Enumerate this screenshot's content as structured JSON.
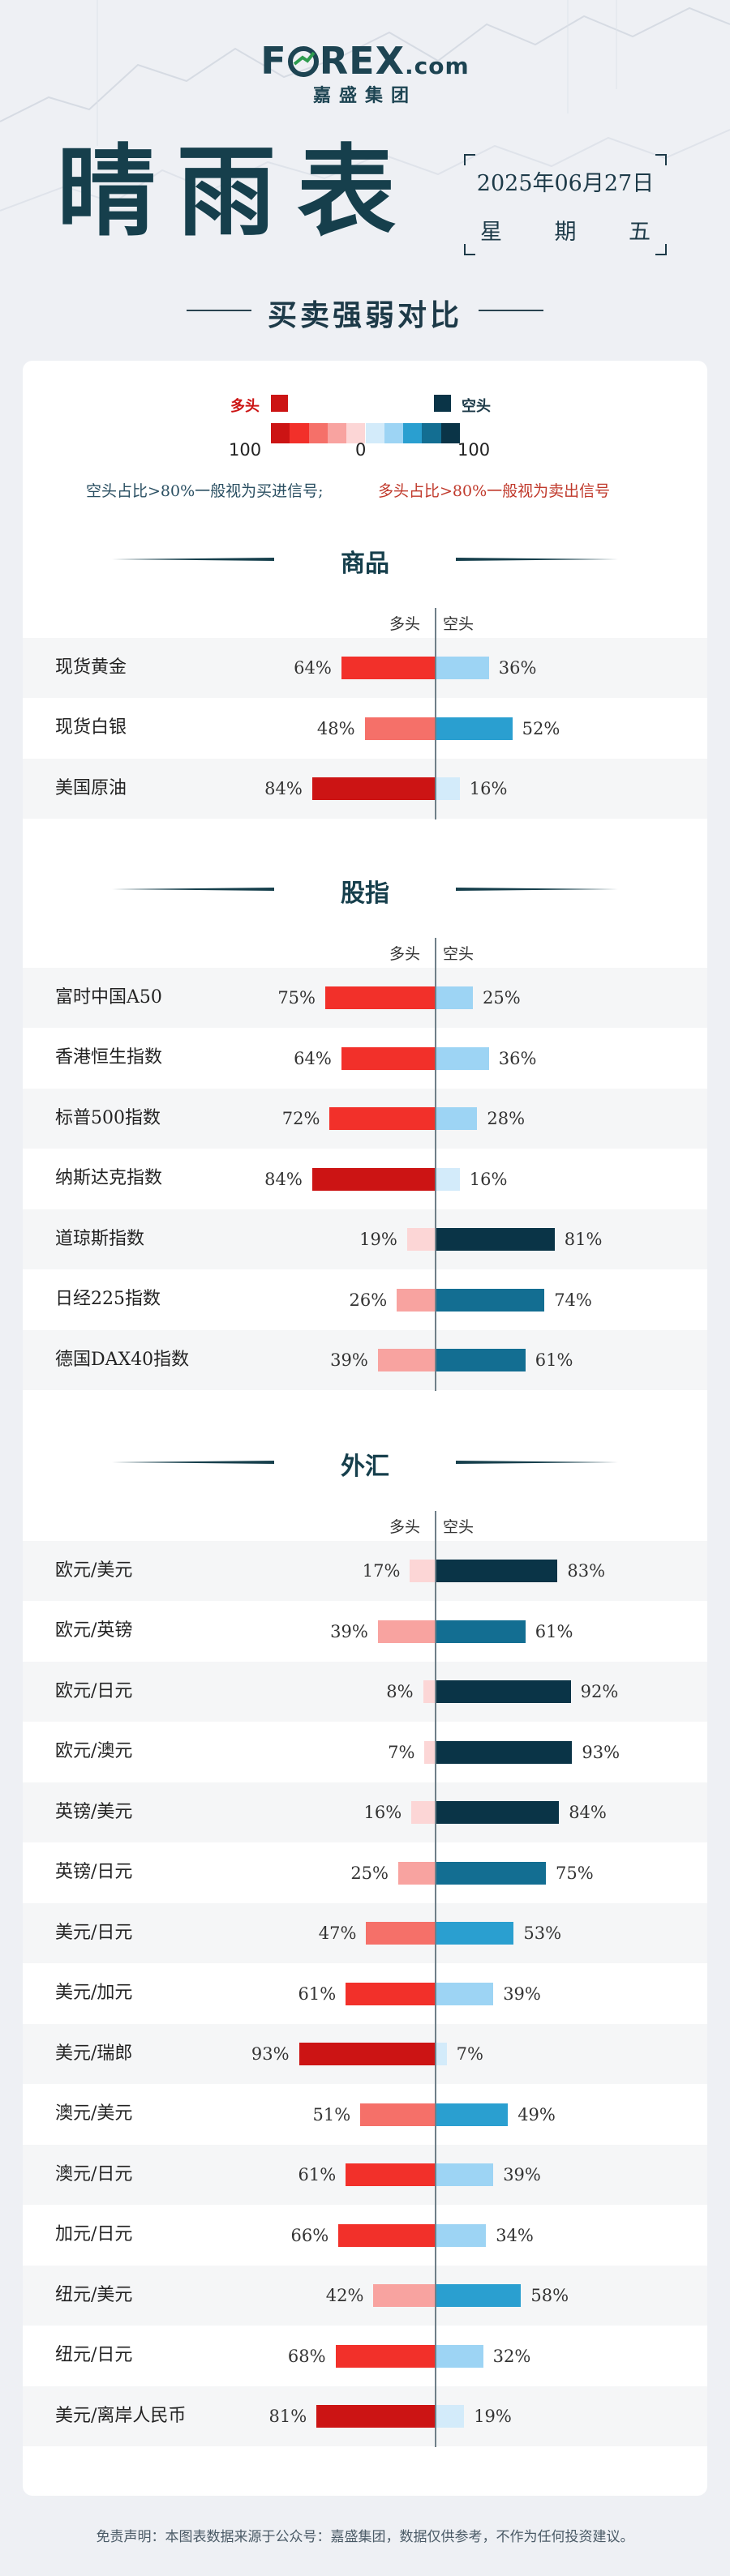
{
  "header": {
    "logo_prefix": "F",
    "logo_middle": "REX",
    "logo_suffix": ".com",
    "logo_sub": "嘉盛集团",
    "title": "晴雨表",
    "date": "2025年06月27日",
    "weekday": [
      "星",
      "期",
      "五"
    ],
    "subtitle": "买卖强弱对比"
  },
  "legend": {
    "long_label": "多头",
    "short_label": "空头",
    "left_num": "100",
    "mid_num": "0",
    "right_num": "100",
    "note_short": "空头占比>80%一般视为买进信号;",
    "note_long": "多头占比>80%一般视为卖出信号"
  },
  "colors": {
    "long": [
      "#cc1414",
      "#f2302a",
      "#f57069",
      "#f8a3a0",
      "#fcd6d6"
    ],
    "short": [
      "#0a3447",
      "#136e92",
      "#2a9fd0",
      "#9dd4f4",
      "#d3ebfa"
    ]
  },
  "column_headers": {
    "long": "多头",
    "short": "空头"
  },
  "footer": {
    "disclaimer": "免责声明：本图表数据来源于公众号：嘉盛集团，数据仅供参考，不作为任何投资建议。"
  },
  "chart_data": {
    "type": "bar",
    "orientation": "horizontal-diverging",
    "series_names": [
      "多头",
      "空头"
    ],
    "sections": [
      {
        "title": "商品",
        "rows": [
          {
            "name": "现货黄金",
            "long": 64,
            "short": 36
          },
          {
            "name": "现货白银",
            "long": 48,
            "short": 52
          },
          {
            "name": "美国原油",
            "long": 84,
            "short": 16
          }
        ]
      },
      {
        "title": "股指",
        "rows": [
          {
            "name": "富时中国A50",
            "long": 75,
            "short": 25
          },
          {
            "name": "香港恒生指数",
            "long": 64,
            "short": 36
          },
          {
            "name": "标普500指数",
            "long": 72,
            "short": 28
          },
          {
            "name": "纳斯达克指数",
            "long": 84,
            "short": 16
          },
          {
            "name": "道琼斯指数",
            "long": 19,
            "short": 81
          },
          {
            "name": "日经225指数",
            "long": 26,
            "short": 74
          },
          {
            "name": "德国DAX40指数",
            "long": 39,
            "short": 61
          }
        ]
      },
      {
        "title": "外汇",
        "rows": [
          {
            "name": "欧元/美元",
            "long": 17,
            "short": 83
          },
          {
            "name": "欧元/英镑",
            "long": 39,
            "short": 61
          },
          {
            "name": "欧元/日元",
            "long": 8,
            "short": 92
          },
          {
            "name": "欧元/澳元",
            "long": 7,
            "short": 93
          },
          {
            "name": "英镑/美元",
            "long": 16,
            "short": 84
          },
          {
            "name": "英镑/日元",
            "long": 25,
            "short": 75
          },
          {
            "name": "美元/日元",
            "long": 47,
            "short": 53
          },
          {
            "name": "美元/加元",
            "long": 61,
            "short": 39
          },
          {
            "name": "美元/瑞郎",
            "long": 93,
            "short": 7
          },
          {
            "name": "澳元/美元",
            "long": 51,
            "short": 49
          },
          {
            "name": "澳元/日元",
            "long": 61,
            "short": 39
          },
          {
            "name": "加元/日元",
            "long": 66,
            "short": 34
          },
          {
            "name": "纽元/美元",
            "long": 42,
            "short": 58
          },
          {
            "name": "纽元/日元",
            "long": 68,
            "short": 32
          },
          {
            "name": "美元/离岸人民币",
            "long": 81,
            "short": 19
          }
        ]
      }
    ]
  }
}
